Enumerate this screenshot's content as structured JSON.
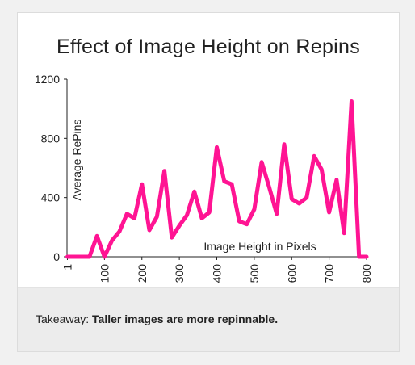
{
  "footer": {
    "takeaway_label": "Takeaway:",
    "takeaway_text": "Taller images are more repinnable."
  },
  "colors": {
    "line": "#ff1493",
    "axis": "#222222"
  },
  "chart_data": {
    "type": "line",
    "title": "Effect of Image Height on Repins",
    "xlabel": "Image Height in Pixels",
    "ylabel": "Average RePins",
    "xlim": [
      0,
      800
    ],
    "ylim": [
      0,
      1200
    ],
    "x_ticks": [
      "1",
      "100",
      "200",
      "300",
      "400",
      "500",
      "600",
      "700",
      "800"
    ],
    "x_tick_values": [
      1,
      100,
      200,
      300,
      400,
      500,
      600,
      700,
      800
    ],
    "y_ticks": [
      "0",
      "400",
      "800",
      "1200"
    ],
    "y_tick_values": [
      0,
      400,
      800,
      1200
    ],
    "series": [
      {
        "x": [
          1,
          20,
          40,
          60,
          80,
          100,
          120,
          140,
          160,
          180,
          200,
          220,
          240,
          260,
          280,
          300,
          320,
          340,
          360,
          380,
          400,
          420,
          440,
          460,
          480,
          500,
          520,
          540,
          560,
          580,
          600,
          620,
          640,
          660,
          680,
          700,
          720,
          740,
          760,
          780,
          800
        ],
        "values": [
          0,
          0,
          0,
          0,
          140,
          0,
          110,
          170,
          290,
          260,
          490,
          180,
          270,
          580,
          130,
          210,
          280,
          440,
          260,
          300,
          740,
          510,
          490,
          240,
          220,
          320,
          640,
          470,
          290,
          760,
          390,
          360,
          400,
          680,
          590,
          300,
          520,
          160,
          1050,
          0,
          0
        ]
      }
    ]
  }
}
